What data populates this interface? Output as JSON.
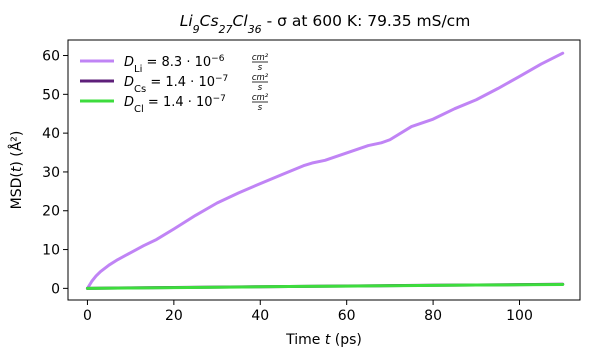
{
  "chart_data": {
    "type": "line",
    "title": {
      "formula_parts": [
        {
          "t": "Li",
          "sub": false
        },
        {
          "t": "9",
          "sub": true
        },
        {
          "t": "Cs",
          "sub": false
        },
        {
          "t": "27",
          "sub": true
        },
        {
          "t": "Cl",
          "sub": false
        },
        {
          "t": "36",
          "sub": true
        }
      ],
      "suffix": " - σ at 600 K: 79.35 mS/cm"
    },
    "xlabel": "Time t (ps)",
    "ylabel": "MSD(t) (Å²)",
    "xlim": [
      -4.5,
      114
    ],
    "ylim": [
      -3,
      64
    ],
    "xticks": [
      0,
      20,
      40,
      60,
      80,
      100
    ],
    "yticks": [
      0,
      10,
      20,
      30,
      40,
      50,
      60
    ],
    "legend_position": "top-left",
    "series": [
      {
        "name": "D_Li = 8.3·10⁻⁶ cm²/s",
        "legend": {
          "sym": "D",
          "sub": "Li",
          "value": "8.3",
          "exp": "−6",
          "num": "cm²",
          "den": "s"
        },
        "color": "#c084f5",
        "x": [
          0,
          1,
          2,
          3,
          5,
          7,
          10,
          13,
          16,
          20,
          25,
          30,
          35,
          40,
          45,
          50,
          52,
          55,
          60,
          65,
          68,
          70,
          75,
          80,
          85,
          90,
          95,
          100,
          105,
          110
        ],
        "y": [
          0,
          1.8,
          3.2,
          4.3,
          6.0,
          7.4,
          9.2,
          11.0,
          12.6,
          15.3,
          18.8,
          22.0,
          24.6,
          27.0,
          29.3,
          31.6,
          32.3,
          33.0,
          34.9,
          36.8,
          37.5,
          38.3,
          41.7,
          43.6,
          46.3,
          48.6,
          51.5,
          54.6,
          57.8,
          60.6
        ]
      },
      {
        "name": "D_Cs = 1.4·10⁻⁷ cm²/s",
        "legend": {
          "sym": "D",
          "sub": "Cs",
          "value": "1.4",
          "exp": "−7",
          "num": "cm²",
          "den": "s"
        },
        "color": "#5e1f7a",
        "x": [
          0,
          10,
          20,
          30,
          40,
          50,
          60,
          70,
          80,
          90,
          100,
          110
        ],
        "y": [
          0,
          0.12,
          0.22,
          0.32,
          0.42,
          0.52,
          0.6,
          0.7,
          0.8,
          0.88,
          0.95,
          1.05
        ]
      },
      {
        "name": "D_Cl = 1.4·10⁻⁷ cm²/s",
        "legend": {
          "sym": "D",
          "sub": "Cl",
          "value": "1.4",
          "exp": "−7",
          "num": "cm²",
          "den": "s"
        },
        "color": "#3ddc3d",
        "x": [
          0,
          10,
          20,
          30,
          40,
          50,
          60,
          70,
          80,
          90,
          100,
          110
        ],
        "y": [
          0,
          0.1,
          0.2,
          0.3,
          0.4,
          0.5,
          0.58,
          0.68,
          0.78,
          0.86,
          0.93,
          1.0
        ]
      }
    ]
  }
}
